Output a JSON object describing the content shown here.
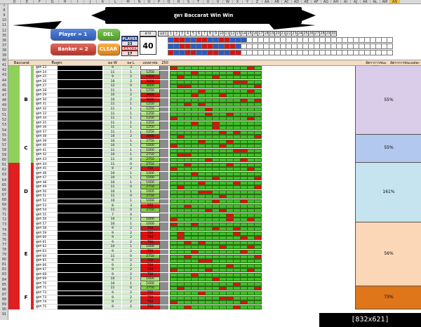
{
  "sheet": {
    "title": "สูตร Baccarat Win Win",
    "column_headers": [
      "D",
      "E",
      "F",
      "G",
      "H",
      "I",
      "J",
      "K",
      "L",
      "M",
      "N",
      "O",
      "P",
      "Q",
      "R",
      "S",
      "T",
      "U",
      "V",
      "W",
      "X",
      "Y",
      "Z",
      "AA",
      "AB",
      "AC",
      "AD",
      "AE",
      "AF",
      "AG",
      "AH",
      "AI",
      "AJ",
      "AK",
      "AL",
      "AM",
      "AN"
    ],
    "row_numbers": [
      "7",
      "8",
      "9",
      "10",
      "11",
      "12",
      "35",
      "36",
      "37",
      "38",
      "39",
      "40",
      "41",
      "42",
      "43",
      "44",
      "45",
      "46",
      "47",
      "48",
      "49",
      "50",
      "51",
      "52",
      "53",
      "54",
      "55",
      "56",
      "57",
      "58",
      "59",
      "60",
      "61",
      "62",
      "63",
      "64",
      "65",
      "66",
      "67",
      "68",
      "69",
      "70",
      "71",
      "72",
      "73",
      "74",
      "75",
      "76",
      "77",
      "78",
      "79",
      "80",
      "81",
      "82",
      "83",
      "84",
      "85",
      "86",
      "87",
      "88",
      "89",
      "90",
      "91"
    ]
  },
  "controls": {
    "player_label": "Player = 1",
    "banker_label": "Banker = 2",
    "del_label": "DEL",
    "clear_label": "CLEAR"
  },
  "counts": {
    "player_label": "PLAYER",
    "player_value": "23",
    "banker_label": "BANKER",
    "banker_value": "17",
    "chip_label": "ลาก",
    "total": "40",
    "rows_label": "แถว"
  },
  "progress_numbers": [
    "1",
    "2",
    "3",
    "4",
    "5",
    "6",
    "7",
    "8",
    "9",
    "10",
    "11",
    "12",
    "13",
    "14",
    "15",
    "16",
    "17",
    "18",
    "19",
    "20",
    "21",
    "22",
    "23",
    "24",
    "25",
    "26",
    "27",
    "28",
    "29",
    "30"
  ],
  "table_header": {
    "col_baccarat": "Baccarat",
    "col_formula": "ชื่อสูตร",
    "col_w": "ผล W",
    "col_l": "ผล L",
    "col_bet": "แทงตาต่อ",
    "col_base": "250",
    "col_pct": "อัตราการชนะ",
    "col_group_pct": "อัตราการชนะแต่ละกลุ่ม"
  },
  "groups": [
    {
      "letter": "B",
      "total": "55%"
    },
    {
      "letter": "C",
      "total": "55%"
    },
    {
      "letter": "D",
      "total": "161%"
    },
    {
      "letter": "E",
      "total": "56%"
    },
    {
      "letter": "F",
      "total": "73%"
    }
  ],
  "rows": [
    {
      "name": "สูตร 23",
      "w": "9",
      "l": "3",
      "bet": "",
      "pct": "30%"
    },
    {
      "name": "สูตร 24",
      "w": "11",
      "l": "1",
      "bet": "1250",
      "pct": "110%"
    },
    {
      "name": "สูตร 25",
      "w": "9",
      "l": "2",
      "bet": "1250",
      "pct": "110%"
    },
    {
      "name": "สูตร 26",
      "w": "10",
      "l": "2",
      "bet": "3000",
      "pct": "50%"
    },
    {
      "name": "สูตร 27",
      "w": "12",
      "l": "0",
      "bet": "3000",
      "pct": "14%"
    },
    {
      "name": "สูตร 28",
      "w": "11",
      "l": "1",
      "bet": "1250",
      "pct": "9999999%"
    },
    {
      "name": "สูตร 29",
      "w": "10",
      "l": "2",
      "bet": "3000",
      "pct": "50%"
    },
    {
      "name": "สูตร 30",
      "w": "10",
      "l": "2",
      "bet": "3000",
      "pct": "50%"
    },
    {
      "name": "สูตร 31",
      "w": "11",
      "l": "1",
      "bet": "1250",
      "pct": "110%"
    },
    {
      "name": "สูตร 32",
      "w": "11",
      "l": "1",
      "bet": "1250",
      "pct": "110%"
    },
    {
      "name": "สูตร 33",
      "w": "11",
      "l": "1",
      "bet": "1250",
      "pct": "110%"
    },
    {
      "name": "สูตร 34",
      "w": "11",
      "l": "1",
      "bet": "1250",
      "pct": "110%"
    },
    {
      "name": "สูตร 35",
      "w": "11",
      "l": "1",
      "bet": "1250",
      "pct": "110%"
    },
    {
      "name": "สูตร 36",
      "w": "11",
      "l": "1",
      "bet": "1250",
      "pct": "110%"
    },
    {
      "name": "สูตร 37",
      "w": "11",
      "l": "1",
      "bet": "1250",
      "pct": "110%"
    },
    {
      "name": "สูตร 38",
      "w": "10",
      "l": "2",
      "bet": "3000",
      "pct": "50%"
    },
    {
      "name": "สูตร 39",
      "w": "10",
      "l": "1",
      "bet": "2750",
      "pct": "9999999%"
    },
    {
      "name": "สูตร 40",
      "w": "10",
      "l": "1",
      "bet": "1000",
      "pct": "100%"
    },
    {
      "name": "สูตร 41",
      "w": "11",
      "l": "1",
      "bet": "1000",
      "pct": "100%"
    },
    {
      "name": "สูตร 42",
      "w": "10",
      "l": "1",
      "bet": "2750",
      "pct": "100%"
    },
    {
      "name": "สูตร 43",
      "w": "11",
      "l": "0",
      "bet": "2750",
      "pct": "9999999%"
    },
    {
      "name": "สูตร 44",
      "w": "11",
      "l": "0",
      "bet": "2750",
      "pct": "9999999%"
    },
    {
      "name": "สูตร 45",
      "w": "9",
      "l": "2",
      "bet": "750",
      "pct": "45%"
    },
    {
      "name": "สูตร 46",
      "w": "10",
      "l": "1",
      "bet": "1000",
      "pct": "100%"
    },
    {
      "name": "สูตร 47",
      "w": "10",
      "l": "1",
      "bet": "1000",
      "pct": "100%"
    },
    {
      "name": "สูตร 48",
      "w": "10",
      "l": "1",
      "bet": "1000",
      "pct": "100%"
    },
    {
      "name": "สูตร 49",
      "w": "11",
      "l": "0",
      "bet": "2750",
      "pct": "9999999%"
    },
    {
      "name": "สูตร 50",
      "w": "10",
      "l": "1",
      "bet": "1000",
      "pct": "100%"
    },
    {
      "name": "สูตร 51",
      "w": "11",
      "l": "0",
      "bet": "2750",
      "pct": "9999999%"
    },
    {
      "name": "สูตร 52",
      "w": "10",
      "l": "1",
      "bet": "1000",
      "pct": "100%"
    },
    {
      "name": "สูตร 53",
      "w": "8",
      "l": "3",
      "bet": "250",
      "pct": "27%"
    },
    {
      "name": "สูตร 54",
      "w": "11",
      "l": "0",
      "bet": "2750",
      "pct": "9999999%"
    },
    {
      "name": "สูตร 55",
      "w": "7",
      "l": "4",
      "bet": "",
      "pct": "18%"
    },
    {
      "name": "สูตร 56",
      "w": "10",
      "l": "1",
      "bet": "1000",
      "pct": "100%"
    },
    {
      "name": "สูตร 57",
      "w": "10",
      "l": "1",
      "bet": "1000",
      "pct": "100%"
    },
    {
      "name": "สูตร 58",
      "w": "9",
      "l": "2",
      "bet": "750",
      "pct": "45%"
    },
    {
      "name": "สูตร 59",
      "w": "9",
      "l": "2",
      "bet": "750",
      "pct": "45%"
    },
    {
      "name": "สูตร 60",
      "w": "9",
      "l": "2",
      "bet": "750",
      "pct": "45%"
    },
    {
      "name": "สูตร 61",
      "w": "9",
      "l": "2",
      "bet": "750",
      "pct": "45%"
    },
    {
      "name": "สูตร 62",
      "w": "10",
      "l": "1",
      "bet": "1000",
      "pct": "100%"
    },
    {
      "name": "สูตร 63",
      "w": "9",
      "l": "2",
      "bet": "750",
      "pct": "45%"
    },
    {
      "name": "สูตร 64",
      "w": "11",
      "l": "0",
      "bet": "2750",
      "pct": "9999999%"
    },
    {
      "name": "สูตร 65",
      "w": "9",
      "l": "2",
      "bet": "750",
      "pct": "45%"
    },
    {
      "name": "สูตร 66",
      "w": "9",
      "l": "2",
      "bet": "750",
      "pct": "45%"
    },
    {
      "name": "สูตร 67",
      "w": "9",
      "l": "2",
      "bet": "750",
      "pct": "45%"
    },
    {
      "name": "สูตร 68",
      "w": "9",
      "l": "2",
      "bet": "750",
      "pct": "45%"
    },
    {
      "name": "สูตร 69",
      "w": "10",
      "l": "1",
      "bet": "1000",
      "pct": "100%"
    },
    {
      "name": "สูตร 70",
      "w": "10",
      "l": "1",
      "bet": "1000",
      "pct": "100%"
    },
    {
      "name": "สูตร 71",
      "w": "11",
      "l": "0",
      "bet": "2750",
      "pct": "9999999%"
    },
    {
      "name": "สูตร 72",
      "w": "9",
      "l": "2",
      "bet": "750",
      "pct": "45%"
    },
    {
      "name": "สูตร 73",
      "w": "9",
      "l": "2",
      "bet": "750",
      "pct": "45%"
    },
    {
      "name": "สูตร 74",
      "w": "9",
      "l": "2",
      "bet": "750",
      "pct": "45%"
    },
    {
      "name": "สูตร 75",
      "w": "9",
      "l": "2",
      "bet": "750",
      "pct": "45%"
    }
  ],
  "colors": {
    "grid_green": "#3fbf2b",
    "grid_red": "#e01010",
    "group_a_band": "#8ed15b",
    "group_red_band": "#e02020",
    "pct_b": "#d9cdea",
    "pct_c": "#b3c8ee",
    "pct_d": "#c5e4f0",
    "pct_e": "#fbd7b8",
    "pct_f": "#e0761a"
  },
  "footer": "[832x621] http://upic.me/"
}
